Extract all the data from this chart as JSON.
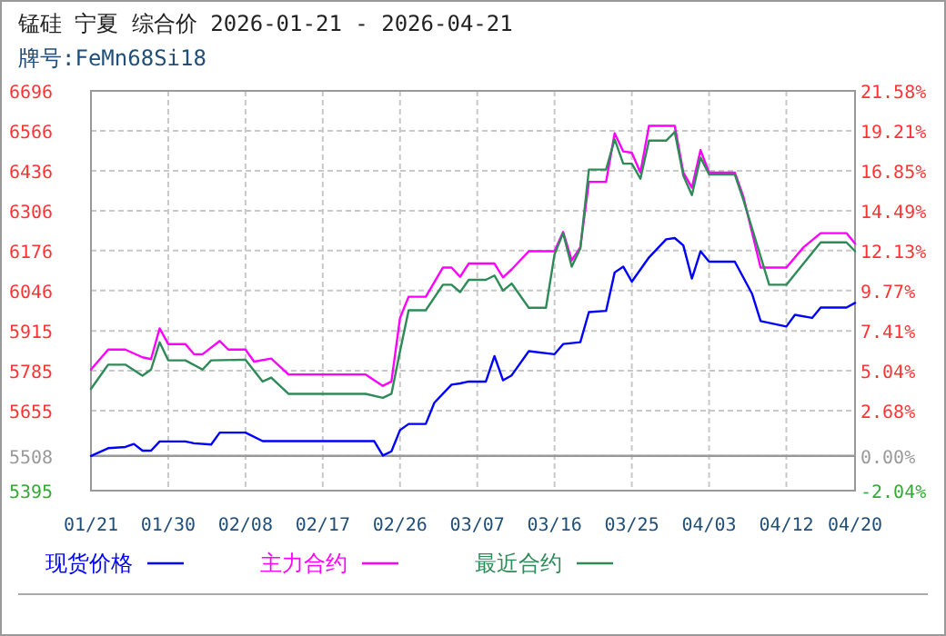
{
  "chart_data": {
    "type": "line",
    "title": "锰硅 宁夏 综合价 2026-01-21 - 2026-04-21",
    "subtitle": "牌号:FeMn68Si18",
    "xlim": [
      "2026-01-21",
      "2026-04-20"
    ],
    "xticks": [
      {
        "value": "2026-01-21",
        "label": "01/21"
      },
      {
        "value": "2026-01-30",
        "label": "01/30"
      },
      {
        "value": "2026-02-08",
        "label": "02/08"
      },
      {
        "value": "2026-02-17",
        "label": "02/17"
      },
      {
        "value": "2026-02-26",
        "label": "02/26"
      },
      {
        "value": "2026-03-07",
        "label": "03/07"
      },
      {
        "value": "2026-03-16",
        "label": "03/16"
      },
      {
        "value": "2026-03-25",
        "label": "03/25"
      },
      {
        "value": "2026-04-03",
        "label": "04/03"
      },
      {
        "value": "2026-04-12",
        "label": "04/12"
      },
      {
        "value": "2026-04-20",
        "label": "04/20"
      }
    ],
    "ylim": [
      5395,
      6696
    ],
    "yticks": [
      5395,
      5508,
      5655,
      5785,
      5915,
      6046,
      6176,
      6306,
      6436,
      6566,
      6696
    ],
    "y2lim": [
      -2.04,
      21.58
    ],
    "y2ticks": [
      {
        "value": -2.04,
        "label": "-2.04%"
      },
      {
        "value": 0,
        "label": "0.00%"
      },
      {
        "value": 2.68,
        "label": "2.68%"
      },
      {
        "value": 5.04,
        "label": "5.04%"
      },
      {
        "value": 7.41,
        "label": "7.41%"
      },
      {
        "value": 9.77,
        "label": "9.77%"
      },
      {
        "value": 12.13,
        "label": "12.13%"
      },
      {
        "value": 14.49,
        "label": "14.49%"
      },
      {
        "value": 16.85,
        "label": "16.85%"
      },
      {
        "value": 19.21,
        "label": "19.21%"
      },
      {
        "value": 21.58,
        "label": "21.58%"
      }
    ],
    "ref_lines": [
      {
        "axis": "y",
        "value": 5508,
        "color": "#999999"
      }
    ],
    "grid": true,
    "legend": "bottom",
    "line_style": "solid",
    "series": [
      {
        "name": "现货价格",
        "color": "#0000ff",
        "x": [
          "2026-01-21",
          "2026-01-23",
          "2026-01-25",
          "2026-01-26",
          "2026-01-27",
          "2026-01-28",
          "2026-01-29",
          "2026-02-01",
          "2026-02-02",
          "2026-02-04",
          "2026-02-05",
          "2026-02-08",
          "2026-02-10",
          "2026-02-23",
          "2026-02-24",
          "2026-02-25",
          "2026-02-26",
          "2026-02-27",
          "2026-03-01",
          "2026-03-02",
          "2026-03-04",
          "2026-03-05",
          "2026-03-06",
          "2026-03-08",
          "2026-03-09",
          "2026-03-10",
          "2026-03-11",
          "2026-03-13",
          "2026-03-16",
          "2026-03-17",
          "2026-03-19",
          "2026-03-20",
          "2026-03-22",
          "2026-03-23",
          "2026-03-24",
          "2026-03-25",
          "2026-03-27",
          "2026-03-29",
          "2026-03-30",
          "2026-03-31",
          "2026-04-01",
          "2026-04-02",
          "2026-04-03",
          "2026-04-06",
          "2026-04-08",
          "2026-04-09",
          "2026-04-12",
          "2026-04-13",
          "2026-04-15",
          "2026-04-16",
          "2026-04-19",
          "2026-04-20"
        ],
        "values": [
          5508,
          5533,
          5537,
          5547,
          5525,
          5525,
          5555,
          5555,
          5549,
          5545,
          5584,
          5584,
          5556,
          5556,
          5509,
          5523,
          5592,
          5612,
          5612,
          5681,
          5740,
          5744,
          5750,
          5750,
          5833,
          5754,
          5770,
          5849,
          5839,
          5872,
          5878,
          5976,
          5980,
          6105,
          6124,
          6075,
          6154,
          6213,
          6217,
          6193,
          6085,
          6174,
          6140,
          6140,
          6036,
          5947,
          5929,
          5967,
          5957,
          5991,
          5991,
          6006
        ]
      },
      {
        "name": "主力合约",
        "color": "#ff00ff",
        "x": [
          "2026-01-21",
          "2026-01-23",
          "2026-01-25",
          "2026-01-27",
          "2026-01-28",
          "2026-01-29",
          "2026-01-30",
          "2026-02-01",
          "2026-02-02",
          "2026-02-03",
          "2026-02-05",
          "2026-02-06",
          "2026-02-08",
          "2026-02-09",
          "2026-02-11",
          "2026-02-13",
          "2026-02-22",
          "2026-02-24",
          "2026-02-25",
          "2026-02-26",
          "2026-02-27",
          "2026-03-01",
          "2026-03-03",
          "2026-03-04",
          "2026-03-05",
          "2026-03-06",
          "2026-03-09",
          "2026-03-10",
          "2026-03-11",
          "2026-03-13",
          "2026-03-16",
          "2026-03-17",
          "2026-03-18",
          "2026-03-19",
          "2026-03-20",
          "2026-03-22",
          "2026-03-23",
          "2026-03-24",
          "2026-03-25",
          "2026-03-26",
          "2026-03-27",
          "2026-03-30",
          "2026-03-31",
          "2026-04-01",
          "2026-04-02",
          "2026-04-03",
          "2026-04-06",
          "2026-04-07",
          "2026-04-09",
          "2026-04-12",
          "2026-04-14",
          "2026-04-16",
          "2026-04-19",
          "2026-04-20"
        ],
        "values": [
          5789,
          5854,
          5854,
          5829,
          5823,
          5923,
          5872,
          5872,
          5839,
          5839,
          5882,
          5854,
          5854,
          5815,
          5825,
          5773,
          5773,
          5736,
          5750,
          5957,
          6026,
          6026,
          6121,
          6121,
          6091,
          6134,
          6134,
          6089,
          6115,
          6174,
          6174,
          6237,
          6144,
          6187,
          6400,
          6400,
          6558,
          6499,
          6495,
          6430,
          6582,
          6582,
          6430,
          6381,
          6503,
          6430,
          6430,
          6351,
          6121,
          6121,
          6187,
          6233,
          6233,
          6199
        ]
      },
      {
        "name": "最近合约",
        "color": "#2e8b57",
        "x": [
          "2026-01-21",
          "2026-01-23",
          "2026-01-25",
          "2026-01-27",
          "2026-01-28",
          "2026-01-29",
          "2026-01-30",
          "2026-02-01",
          "2026-02-03",
          "2026-02-04",
          "2026-02-08",
          "2026-02-10",
          "2026-02-11",
          "2026-02-13",
          "2026-02-22",
          "2026-02-24",
          "2026-02-25",
          "2026-02-26",
          "2026-02-27",
          "2026-03-01",
          "2026-03-03",
          "2026-03-04",
          "2026-03-05",
          "2026-03-06",
          "2026-03-08",
          "2026-03-09",
          "2026-03-10",
          "2026-03-11",
          "2026-03-13",
          "2026-03-15",
          "2026-03-16",
          "2026-03-17",
          "2026-03-18",
          "2026-03-19",
          "2026-03-20",
          "2026-03-22",
          "2026-03-23",
          "2026-03-24",
          "2026-03-25",
          "2026-03-26",
          "2026-03-27",
          "2026-03-29",
          "2026-03-30",
          "2026-03-31",
          "2026-04-01",
          "2026-04-02",
          "2026-04-03",
          "2026-04-06",
          "2026-04-07",
          "2026-04-10",
          "2026-04-12",
          "2026-04-14",
          "2026-04-16",
          "2026-04-19",
          "2026-04-20"
        ],
        "values": [
          5726,
          5805,
          5805,
          5769,
          5789,
          5878,
          5819,
          5819,
          5789,
          5819,
          5821,
          5750,
          5763,
          5710,
          5710,
          5697,
          5710,
          5849,
          5982,
          5982,
          6065,
          6065,
          6041,
          6081,
          6081,
          6095,
          6046,
          6069,
          5990,
          5990,
          6164,
          6233,
          6124,
          6183,
          6440,
          6440,
          6538,
          6459,
          6459,
          6410,
          6534,
          6534,
          6562,
          6420,
          6357,
          6479,
          6424,
          6424,
          6341,
          6065,
          6065,
          6134,
          6203,
          6203,
          6174
        ]
      }
    ]
  }
}
